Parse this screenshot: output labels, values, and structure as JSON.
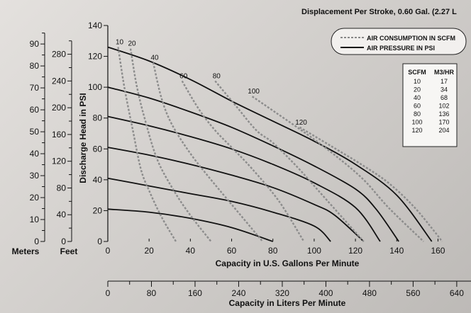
{
  "chart_data": {
    "type": "line",
    "title": "Displacement Per Stroke, 0.60 Gal. (2.27 L",
    "xlabel": "Capacity in U.S. Gallons Per Minute",
    "ylabel": "Discharge Head in PSI",
    "xlim": [
      0,
      176
    ],
    "ylim": [
      0,
      140
    ],
    "x_ticks": [
      0,
      20,
      40,
      60,
      80,
      100,
      120,
      140,
      160
    ],
    "y_ticks": [
      0,
      20,
      40,
      60,
      80,
      100,
      120,
      140
    ],
    "secondary_x_axis": {
      "label": "Capacity in Liters Per Minute",
      "ticks": [
        0,
        80,
        160,
        240,
        320,
        400,
        480,
        560,
        640
      ]
    },
    "secondary_y_axes": [
      {
        "label": "Feet",
        "ticks": [
          0,
          40,
          80,
          120,
          160,
          200,
          240,
          280
        ]
      },
      {
        "label": "Meters",
        "ticks": [
          0,
          10,
          20,
          30,
          40,
          50,
          60,
          70,
          80,
          90
        ]
      }
    ],
    "legend": {
      "position": "top-right",
      "entries": [
        {
          "name": "AIR CONSUMPTION IN SCFM",
          "style": "dashed"
        },
        {
          "name": "AIR PRESSURE IN PSI",
          "style": "solid"
        }
      ]
    },
    "conversion_table": {
      "headers": [
        "SCFM",
        "M3/HR"
      ],
      "rows": [
        [
          "10",
          "17"
        ],
        [
          "20",
          "34"
        ],
        [
          "40",
          "68"
        ],
        [
          "60",
          "102"
        ],
        [
          "80",
          "136"
        ],
        [
          "100",
          "170"
        ],
        [
          "120",
          "204"
        ]
      ]
    },
    "series": [
      {
        "name": "",
        "style": "solid",
        "points": [
          [
            0,
            126
          ],
          [
            20,
            117
          ],
          [
            40,
            105
          ],
          [
            60,
            91
          ],
          [
            80,
            78
          ],
          [
            100,
            65
          ],
          [
            120,
            50
          ],
          [
            140,
            30
          ],
          [
            157,
            0
          ]
        ]
      },
      {
        "name": "",
        "style": "solid",
        "points": [
          [
            0,
            100
          ],
          [
            20,
            93
          ],
          [
            40,
            84
          ],
          [
            60,
            74
          ],
          [
            80,
            62
          ],
          [
            100,
            49
          ],
          [
            120,
            34
          ],
          [
            130,
            21
          ],
          [
            141,
            0
          ]
        ]
      },
      {
        "name": "",
        "style": "solid",
        "points": [
          [
            0,
            81
          ],
          [
            20,
            75
          ],
          [
            40,
            68
          ],
          [
            60,
            60
          ],
          [
            80,
            50
          ],
          [
            100,
            38
          ],
          [
            120,
            22
          ],
          [
            132,
            0
          ]
        ]
      },
      {
        "name": "",
        "style": "solid",
        "points": [
          [
            0,
            61
          ],
          [
            20,
            56
          ],
          [
            40,
            50
          ],
          [
            60,
            43
          ],
          [
            80,
            35
          ],
          [
            100,
            24
          ],
          [
            110,
            17
          ],
          [
            124,
            0
          ]
        ]
      },
      {
        "name": "",
        "style": "solid",
        "points": [
          [
            0,
            41
          ],
          [
            20,
            36
          ],
          [
            40,
            31
          ],
          [
            60,
            26
          ],
          [
            80,
            19
          ],
          [
            100,
            10
          ],
          [
            108,
            0
          ]
        ]
      },
      {
        "name": "",
        "style": "solid",
        "points": [
          [
            0,
            21
          ],
          [
            20,
            19
          ],
          [
            40,
            15
          ],
          [
            60,
            9
          ],
          [
            80,
            0
          ]
        ]
      },
      {
        "name": "10",
        "style": "dashed",
        "points": [
          [
            5,
            126
          ],
          [
            8,
            100
          ],
          [
            12,
            73
          ],
          [
            16,
            47
          ],
          [
            20,
            33
          ],
          [
            26,
            16
          ],
          [
            33,
            0
          ]
        ]
      },
      {
        "name": "20",
        "style": "dashed",
        "points": [
          [
            11,
            125
          ],
          [
            14,
            101
          ],
          [
            18,
            79
          ],
          [
            24,
            53
          ],
          [
            32,
            33
          ],
          [
            40,
            17
          ],
          [
            50,
            0
          ]
        ]
      },
      {
        "name": "40",
        "style": "dashed",
        "points": [
          [
            22,
            116
          ],
          [
            26,
            93
          ],
          [
            31,
            76
          ],
          [
            40,
            57
          ],
          [
            50,
            40
          ],
          [
            60,
            24
          ],
          [
            75,
            0
          ]
        ]
      },
      {
        "name": "60",
        "style": "dashed",
        "points": [
          [
            36,
            104
          ],
          [
            44,
            86
          ],
          [
            52,
            72
          ],
          [
            60,
            61
          ],
          [
            70,
            47
          ],
          [
            83,
            26
          ],
          [
            95,
            0
          ]
        ]
      },
      {
        "name": "80",
        "style": "dashed",
        "points": [
          [
            52,
            104
          ],
          [
            62,
            88
          ],
          [
            72,
            72
          ],
          [
            80,
            64
          ],
          [
            92,
            48
          ],
          [
            104,
            30
          ],
          [
            124,
            0
          ]
        ]
      },
      {
        "name": "100",
        "style": "dashed",
        "points": [
          [
            70,
            94
          ],
          [
            82,
            83
          ],
          [
            96,
            70
          ],
          [
            110,
            56
          ],
          [
            124,
            40
          ],
          [
            136,
            22
          ],
          [
            153,
            0
          ]
        ]
      },
      {
        "name": "120",
        "style": "dashed",
        "points": [
          [
            93,
            74
          ],
          [
            108,
            62
          ],
          [
            124,
            49
          ],
          [
            136,
            38
          ],
          [
            148,
            23
          ],
          [
            158,
            7
          ],
          [
            162,
            0
          ]
        ]
      }
    ]
  }
}
